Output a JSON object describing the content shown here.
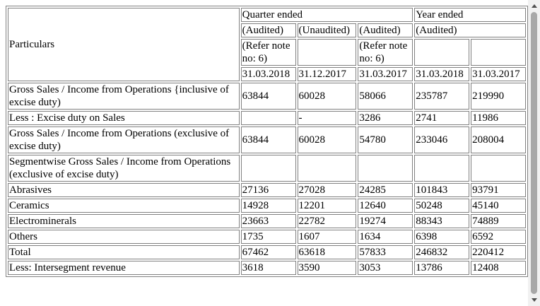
{
  "header": {
    "particulars": "Particulars",
    "quarter_ended": "Quarter ended",
    "year_ended": "Year ended",
    "audit": [
      "(Audited)",
      "(Unaudited)",
      "(Audited)",
      "(Audited)"
    ],
    "note": "(Refer note no: 6)",
    "dates": [
      "31.03.2018",
      "31.12.2017",
      "31.03.2017",
      "31.03.2018",
      "31.03.2017"
    ]
  },
  "rows": [
    {
      "label": "Gross Sales / Income from Operations {inclusive of excise duty)",
      "values": [
        "63844",
        "60028",
        "58066",
        "235787",
        "219990"
      ]
    },
    {
      "label": "Less : Excise duty on Sales",
      "values": [
        "",
        "-",
        "3286",
        "2741",
        "11986"
      ]
    },
    {
      "label": "Gross Sales / Income from Operations (exclusive of excise duty)",
      "values": [
        "63844",
        "60028",
        "54780",
        "233046",
        "208004"
      ]
    },
    {
      "label": "Segmentwise Gross Sales / Income from Operations (exclusive of excise duty)",
      "values": [
        "",
        "",
        "",
        "",
        ""
      ]
    },
    {
      "label": "Abrasives",
      "values": [
        "27136",
        "27028",
        "24285",
        "101843",
        "93791"
      ]
    },
    {
      "label": "Ceramics",
      "values": [
        "14928",
        "12201",
        "12640",
        "50248",
        "45140"
      ]
    },
    {
      "label": "Electrominerals",
      "values": [
        "23663",
        "22782",
        "19274",
        "88343",
        "74889"
      ]
    },
    {
      "label": "Others",
      "values": [
        "1735",
        "1607",
        "1634",
        "6398",
        "6592"
      ]
    },
    {
      "label": "Total",
      "values": [
        "67462",
        "63618",
        "57833",
        "246832",
        "220412"
      ]
    },
    {
      "label": "Less: Intersegment revenue",
      "values": [
        "3618",
        "3590",
        "3053",
        "13786",
        "12408"
      ]
    }
  ]
}
